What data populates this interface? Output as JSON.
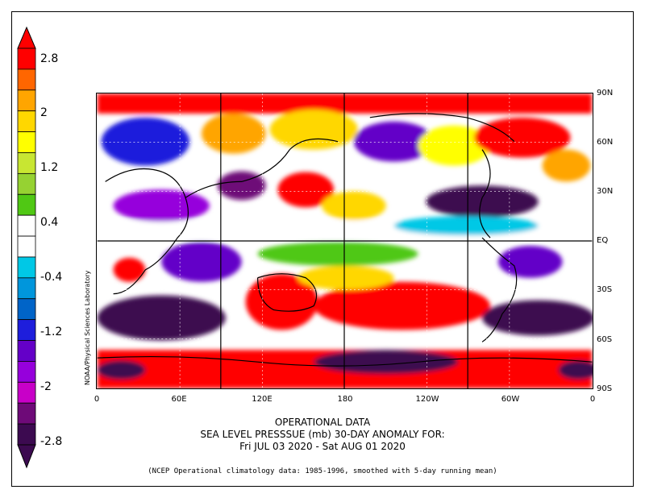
{
  "colorbar": {
    "labels": [
      "2.8",
      "2",
      "1.2",
      "0.4",
      "-0.4",
      "-1.2",
      "-2",
      "-2.8"
    ],
    "colors": [
      "#ff0000",
      "#ff6600",
      "#ffa500",
      "#ffd700",
      "#ffff00",
      "#c8e632",
      "#96d232",
      "#50c814",
      "#ffffff",
      "#ffffff",
      "#00c8e6",
      "#0096dc",
      "#0064c8",
      "#1e1edc",
      "#6400c8",
      "#9600dc",
      "#c800c8",
      "#6e0a78",
      "#3c0a50"
    ]
  },
  "map": {
    "lat_labels": [
      "90N",
      "60N",
      "30N",
      "EQ",
      "30S",
      "60S",
      "90S"
    ],
    "lon_labels": [
      "0",
      "60E",
      "120E",
      "180",
      "120W",
      "60W",
      "0"
    ],
    "credit": "NOAA/Physical Sciences Laboratory"
  },
  "title": {
    "line1": "OPERATIONAL DATA",
    "line2": "SEA LEVEL PRESSSUE (mb)   30-DAY ANOMALY FOR:",
    "line3": "Fri JUL 03 2020 - Sat AUG 01 2020"
  },
  "footnote": "(NCEP Operational climatology data: 1985-1996, smoothed with 5-day running mean)"
}
